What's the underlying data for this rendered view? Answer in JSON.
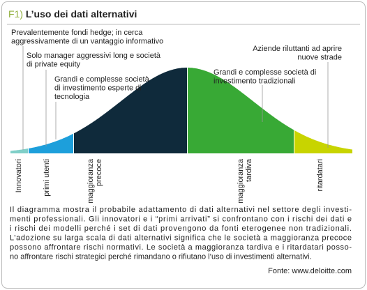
{
  "title": {
    "number": "F1)",
    "text": "L’uso dei dati alternativi"
  },
  "annotations": [
    {
      "lines": [
        "Prevalentemente fondi hedge; in cerca",
        "aggressivamente di un vantaggio informativo"
      ]
    },
    {
      "lines": [
        "Solo manager aggressivi long e società",
        "di private equity"
      ]
    },
    {
      "lines": [
        "Grandi e complesse società",
        "di investimento esperte di",
        "tecnologia"
      ]
    },
    {
      "lines": [
        "Aziende riluttanti ad aprire",
        "nuove strade"
      ]
    },
    {
      "lines": [
        "Grandi e complesse società di",
        "investimento tradizionali"
      ]
    }
  ],
  "segments": [
    {
      "label": [
        "Innovatori"
      ]
    },
    {
      "label": [
        "primi utenti"
      ]
    },
    {
      "label": [
        "maggioranza",
        "precoce"
      ]
    },
    {
      "label": [
        "maggioranza",
        "tardiva"
      ]
    },
    {
      "label": [
        "ritardatari"
      ]
    }
  ],
  "description": [
    "Il diagramma mostra il probabile adattamento di dati alternativi nel settore degli investi-",
    "menti professionali. Gli innovatori e i “primi arrivati” si confrontano con i rischi dei dati e",
    "i rischi dei modelli perché i set di dati provengono da fonti eterogenee non tradizionali.",
    "L’adozione su larga scala di dati alternativi significa che le società a maggioranza precoce",
    "possono affrontare rischi normativi. Le società a maggioranza tardiva e i ritardatari posso-",
    "no affrontare rischi strategici perché rimandano o rifiutano l’uso di investimenti alternativi."
  ],
  "source": "Fonte: www.deloitte.com"
}
